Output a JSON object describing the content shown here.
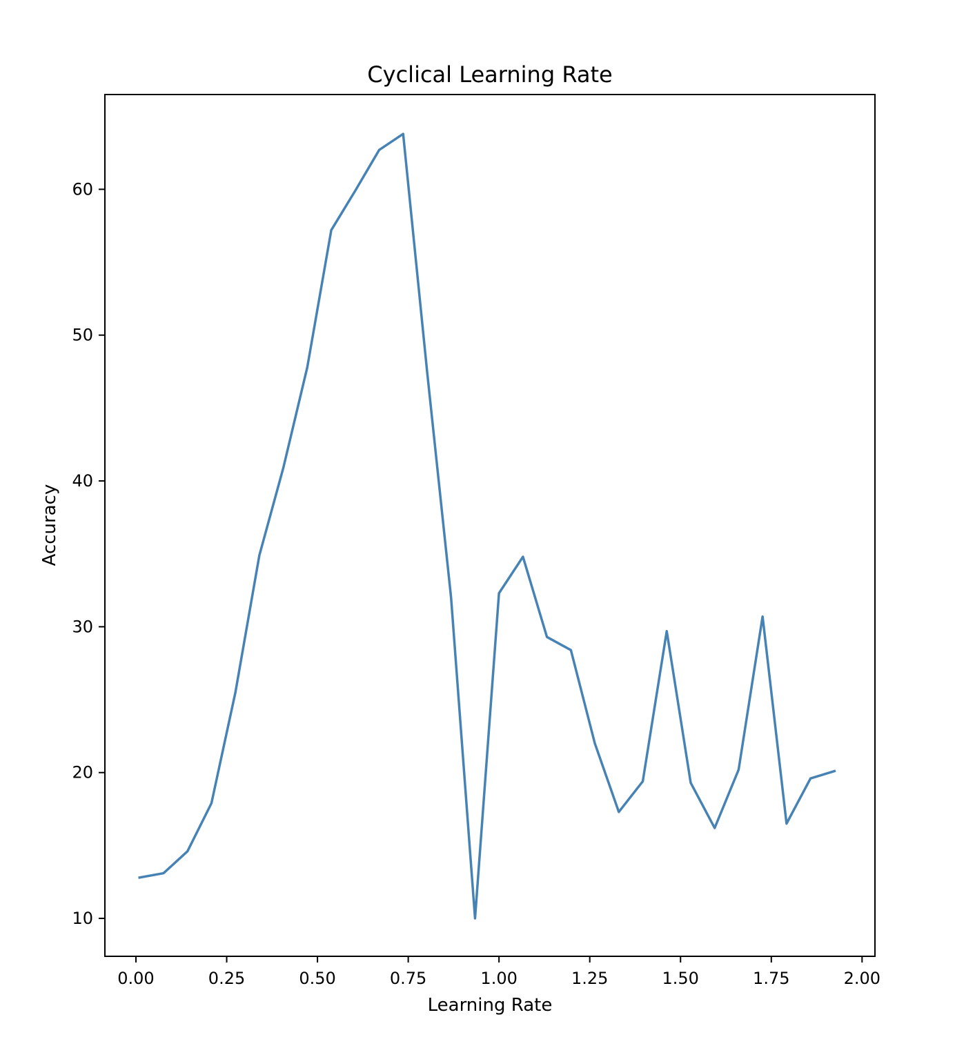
{
  "chart_data": {
    "type": "line",
    "title": "Cyclical Learning Rate",
    "xlabel": "Learning Rate",
    "ylabel": "Accuracy",
    "xlim": [
      -0.0855,
      2.0355
    ],
    "ylim": [
      7.4,
      66.5
    ],
    "x_ticks": [
      0.0,
      0.25,
      0.5,
      0.75,
      1.0,
      1.25,
      1.5,
      1.75,
      2.0
    ],
    "x_tick_labels": [
      "0.00",
      "0.25",
      "0.50",
      "0.75",
      "1.00",
      "1.25",
      "1.50",
      "1.75",
      "2.00"
    ],
    "y_ticks": [
      10,
      20,
      30,
      40,
      50,
      60
    ],
    "y_tick_labels": [
      "10",
      "20",
      "30",
      "40",
      "50",
      "60"
    ],
    "grid": false,
    "series": [
      {
        "color": "#4682b4",
        "x": [
          0.01,
          0.076,
          0.142,
          0.208,
          0.274,
          0.34,
          0.406,
          0.472,
          0.538,
          0.604,
          0.67,
          0.736,
          0.802,
          0.868,
          0.934,
          1.0,
          1.066,
          1.132,
          1.198,
          1.264,
          1.33,
          1.396,
          1.462,
          1.528,
          1.594,
          1.66,
          1.726,
          1.792,
          1.858,
          1.924
        ],
        "y": [
          12.8,
          13.1,
          14.6,
          17.9,
          25.5,
          34.9,
          40.9,
          47.8,
          57.2,
          59.9,
          62.7,
          63.8,
          47.5,
          32.0,
          10.0,
          32.3,
          34.8,
          29.3,
          28.4,
          22.0,
          17.3,
          19.4,
          29.7,
          19.3,
          16.2,
          20.2,
          30.7,
          16.5,
          19.6,
          20.1
        ]
      }
    ]
  }
}
